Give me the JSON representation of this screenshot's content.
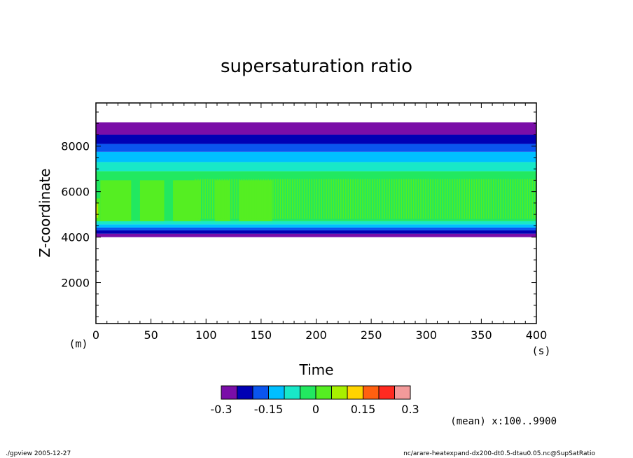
{
  "chart_data": {
    "type": "heatmap",
    "title": "supersaturation ratio",
    "xlabel": "Time",
    "ylabel": "Z-coordinate",
    "x_unit": "(s)",
    "y_unit": "(m)",
    "xlim": [
      0,
      400
    ],
    "ylim": [
      200,
      9900
    ],
    "x_ticks": [
      "0",
      "50",
      "100",
      "150",
      "200",
      "250",
      "300",
      "350",
      "400"
    ],
    "y_ticks": [
      "2000",
      "4000",
      "6000",
      "8000"
    ],
    "x_tick_values": [
      0,
      50,
      100,
      150,
      200,
      250,
      300,
      350,
      400
    ],
    "y_tick_values": [
      2000,
      4000,
      6000,
      8000
    ],
    "annotation": "(mean) x:100..9900",
    "colorbar": {
      "levels": [
        -0.3,
        -0.25,
        -0.2,
        -0.15,
        -0.1,
        -0.05,
        0,
        0.05,
        0.1,
        0.15,
        0.2,
        0.25,
        0.3
      ],
      "tick_labels": [
        "-0.3",
        "-0.15",
        "0",
        "0.15",
        "0.3"
      ],
      "tick_values": [
        -0.3,
        -0.15,
        0,
        0.15,
        0.3
      ],
      "colors": [
        "#7a0ea8",
        "#0000b4",
        "#0a55ee",
        "#00bfff",
        "#18e8c8",
        "#22e860",
        "#55ee22",
        "#a8f000",
        "#ffd400",
        "#ff6010",
        "#ff2a20",
        "#f39a9a"
      ]
    },
    "bands": [
      {
        "z0": 4000,
        "z1": 4150,
        "level": 0
      },
      {
        "z0": 4150,
        "z1": 4300,
        "level": 1
      },
      {
        "z0": 4300,
        "z1": 4420,
        "level": 2
      },
      {
        "z0": 4420,
        "z1": 4560,
        "level": 3
      },
      {
        "z0": 4560,
        "z1": 4700,
        "level": 4
      },
      {
        "z0": 4700,
        "z1": 6900,
        "level": 5
      },
      {
        "z0": 6900,
        "z1": 7300,
        "level": 4
      },
      {
        "z0": 7300,
        "z1": 7750,
        "level": 3
      },
      {
        "z0": 7750,
        "z1": 8100,
        "level": 2
      },
      {
        "z0": 8100,
        "z1": 8500,
        "level": 1
      },
      {
        "z0": 8500,
        "z1": 9050,
        "level": 0
      }
    ],
    "cells": [
      {
        "t0": 0,
        "t1": 4,
        "z0": 4700,
        "z1": 5700,
        "level": 6
      },
      {
        "t0": 0,
        "t1": 2,
        "z0": 4850,
        "z1": 5500,
        "level": 7
      },
      {
        "t0": 0,
        "t1": 1,
        "z0": 4950,
        "z1": 5350,
        "level": 8
      },
      {
        "t0": 4,
        "t1": 32,
        "z0": 4700,
        "z1": 6500,
        "level": 6
      },
      {
        "t0": 40,
        "t1": 62,
        "z0": 4700,
        "z1": 6500,
        "level": 6
      },
      {
        "t0": 70,
        "t1": 95,
        "z0": 4700,
        "z1": 6500,
        "level": 6
      },
      {
        "t0": 108,
        "t1": 122,
        "z0": 4700,
        "z1": 6500,
        "level": 6
      },
      {
        "t0": 130,
        "t1": 160,
        "z0": 4700,
        "z1": 6500,
        "level": 6
      }
    ],
    "oscillation": {
      "t0": 90,
      "t1": 398,
      "period": 2.2,
      "z0": 4800,
      "z1": 6550,
      "level": 6
    }
  },
  "footer": {
    "left": "./gpview   2005-12-27",
    "right": "nc/arare-heatexpand-dx200-dt0.5-dtau0.05.nc@SupSatRatio"
  }
}
